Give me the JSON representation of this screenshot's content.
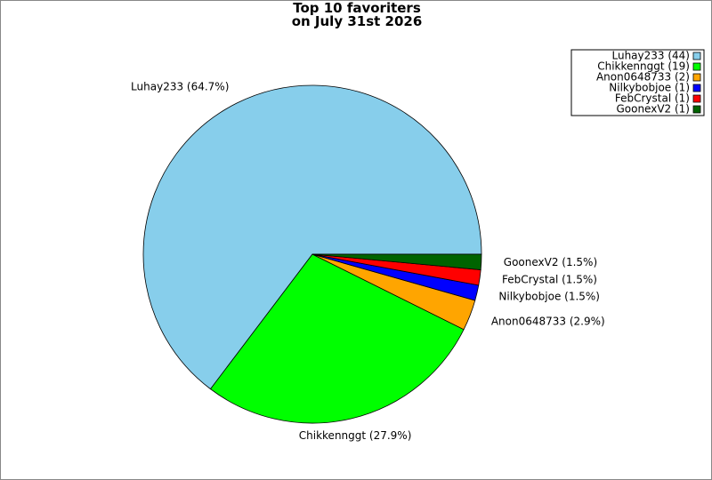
{
  "chart_data": {
    "type": "pie",
    "title": "Top 10 favoriters\non July 31st 2026",
    "categories": [
      "Luhay233 (44)",
      "Chikkennggt (19)",
      "Anon0648733 (2)",
      "Nilkybobjoe (1)",
      "FebCrystal (1)",
      "GoonexV2 (1)"
    ],
    "values": [
      44,
      19,
      2,
      1,
      1,
      1
    ],
    "value_labels": [
      "Luhay233 (64.7%)",
      "Chikkennggt (27.9%)",
      "Anon0648733 (2.9%)",
      "Nilkybobjoe (1.5%)",
      "FebCrystal (1.5%)",
      "GoonexV2 (1.5%)"
    ],
    "colors": [
      "#87ceeb",
      "#00ff00",
      "#ffa500",
      "#0000ff",
      "#ff0000",
      "#006400"
    ],
    "legend": "upper right"
  }
}
